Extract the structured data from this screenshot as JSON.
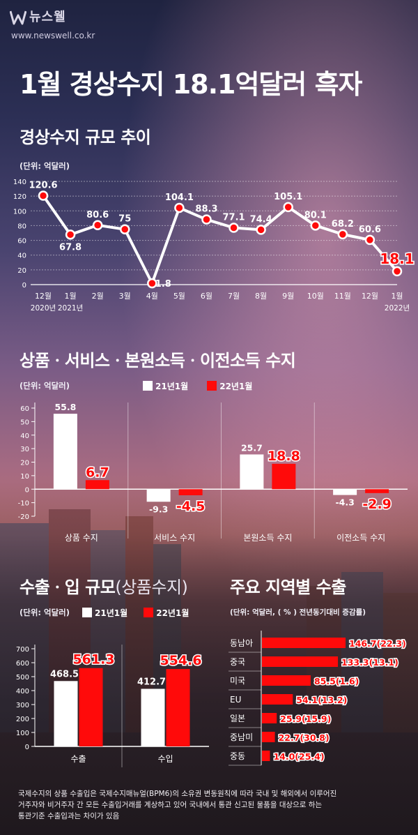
{
  "header": {
    "logo_text": "뉴스웰",
    "url": "www.newswell.co.kr",
    "title": "1월 경상수지 18.1억달러 흑자"
  },
  "colors": {
    "highlight": "#ff0a0a",
    "neutral": "#ffffff",
    "grid": "rgba(255,255,255,0.45)"
  },
  "footnote": {
    "line1": "국제수지의 상품 수출입은 국제수지매뉴얼(BPM6)의 소유권 변동원칙에 따라 국내 및 해외에서 이루어진",
    "line2": "거주자와 비거주자 간 모든 수출입거래를 계상하고 있어 국내에서 통관 신고된 물품을 대상으로 하는",
    "line3": "통관기준 수출입과는 차이가 있음"
  },
  "chart_data": [
    {
      "id": "current-account",
      "type": "line",
      "title": "경상수지 규모 추이",
      "unit": "(단위: 억달러)",
      "categories": [
        "12월",
        "1월",
        "2월",
        "3월",
        "4월",
        "5월",
        "6월",
        "7월",
        "8월",
        "9월",
        "10월",
        "11월",
        "12월",
        "1월"
      ],
      "year_labels": [
        {
          "index": 0,
          "label": "2020년"
        },
        {
          "index": 1,
          "label": "2021년"
        },
        {
          "index": 13,
          "label": "2022년"
        }
      ],
      "values": [
        120.6,
        67.8,
        80.6,
        75,
        1.8,
        104.1,
        88.3,
        77.1,
        74.4,
        105.1,
        80.1,
        68.2,
        60.6,
        18.1
      ],
      "value_labels": [
        "120.6",
        "67.8",
        "80.6",
        "75",
        "1.8",
        "104.1",
        "88.3",
        "77.1",
        "74.4",
        "105.1",
        "80.1",
        "68.2",
        "60.6",
        "18.1"
      ],
      "label_below": [
        false,
        true,
        false,
        false,
        false,
        false,
        false,
        false,
        false,
        false,
        false,
        false,
        false,
        false
      ],
      "highlight_index": 13,
      "yticks": [
        0,
        20,
        40,
        60,
        80,
        100,
        120,
        140
      ],
      "ylim": [
        0,
        140
      ],
      "grid": true
    },
    {
      "id": "balance-components",
      "type": "bar",
      "title": "상품ㆍ서비스ㆍ본원소득ㆍ이전소득 수지",
      "unit": "(단위: 억달러)",
      "categories": [
        "상품 수지",
        "서비스 수지",
        "본원소득 수지",
        "이전소득 수지"
      ],
      "series": [
        {
          "name": "21년1월",
          "values": [
            55.8,
            -9.3,
            25.7,
            -4.3
          ],
          "labels": [
            "55.8",
            "-9.3",
            "25.7",
            "-4.3"
          ]
        },
        {
          "name": "22년1월",
          "values": [
            6.7,
            -4.5,
            18.8,
            -2.9
          ],
          "labels": [
            "6.7",
            "-4.5",
            "18.8",
            "-2.9"
          ]
        }
      ],
      "yticks": [
        -20,
        -10,
        0,
        10,
        20,
        30,
        40,
        50,
        60
      ],
      "ylim": [
        -20,
        60
      ],
      "legend": "top"
    },
    {
      "id": "export-import",
      "type": "bar",
      "title": "수출ㆍ입 규모",
      "title_suffix": "(상품수지)",
      "unit": "(단위: 억달러)",
      "categories": [
        "수출",
        "수입"
      ],
      "series": [
        {
          "name": "21년1월",
          "values": [
            468.5,
            412.7
          ],
          "labels": [
            "468.5",
            "412.7"
          ]
        },
        {
          "name": "22년1월",
          "values": [
            561.3,
            554.6
          ],
          "labels": [
            "561.3",
            "554.6"
          ]
        }
      ],
      "yticks": [
        0,
        100,
        200,
        300,
        400,
        500,
        600,
        700
      ],
      "ylim": [
        0,
        700
      ],
      "legend": "top"
    },
    {
      "id": "regional-exports",
      "type": "bar",
      "orientation": "horizontal",
      "title": "주요 지역별 수출",
      "unit": "(단위: 억달러, ( % ) 전년동기대비 증감률)",
      "categories": [
        "동남아",
        "중국",
        "미국",
        "EU",
        "일본",
        "중남미",
        "중동"
      ],
      "values": [
        146.7,
        133.3,
        85.5,
        54.1,
        25.9,
        22.7,
        14.0
      ],
      "labels": [
        "146.7(22.3)",
        "133.3(13.1)",
        "85.5(1.6)",
        "54.1(13.2)",
        "25.9(15.9)",
        "22.7(30.8)",
        "14.0(25.4)"
      ],
      "growth_pct": [
        22.3,
        13.1,
        1.6,
        13.2,
        15.9,
        30.8,
        25.4
      ]
    }
  ]
}
